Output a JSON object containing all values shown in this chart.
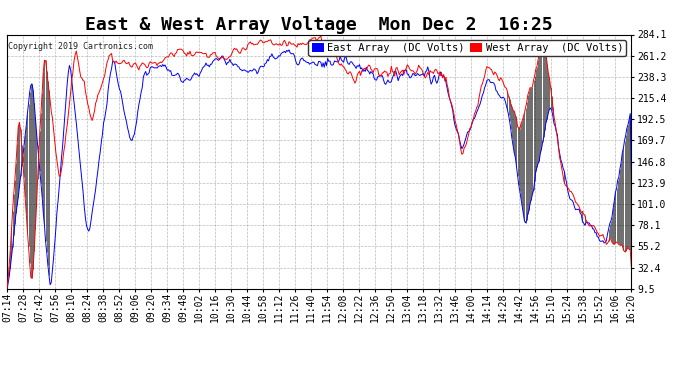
{
  "title": "East & West Array Voltage  Mon Dec 2  16:25",
  "copyright": "Copyright 2019 Cartronics.com",
  "legend_east": "East Array  (DC Volts)",
  "legend_west": "West Array  (DC Volts)",
  "east_color": "#0000ff",
  "west_color": "#ff0000",
  "black_color": "#000000",
  "bg_color": "#ffffff",
  "plot_bg_color": "#ffffff",
  "grid_color": "#aaaaaa",
  "yticks": [
    9.5,
    32.4,
    55.2,
    78.1,
    101.0,
    123.9,
    146.8,
    169.7,
    192.5,
    215.4,
    238.3,
    261.2,
    284.1
  ],
  "ymin": 9.5,
  "ymax": 284.1,
  "title_fontsize": 13,
  "tick_fontsize": 7,
  "legend_fontsize": 7.5,
  "xtick_labels": [
    "07:14",
    "07:28",
    "07:42",
    "07:56",
    "08:10",
    "08:24",
    "08:38",
    "08:52",
    "09:06",
    "09:20",
    "09:34",
    "09:48",
    "10:02",
    "10:16",
    "10:30",
    "10:44",
    "10:58",
    "11:12",
    "11:26",
    "11:40",
    "11:54",
    "12:08",
    "12:22",
    "12:36",
    "12:50",
    "13:04",
    "13:18",
    "13:32",
    "13:46",
    "14:00",
    "14:14",
    "14:28",
    "14:42",
    "14:56",
    "15:10",
    "15:24",
    "15:38",
    "15:52",
    "16:06",
    "16:20"
  ]
}
